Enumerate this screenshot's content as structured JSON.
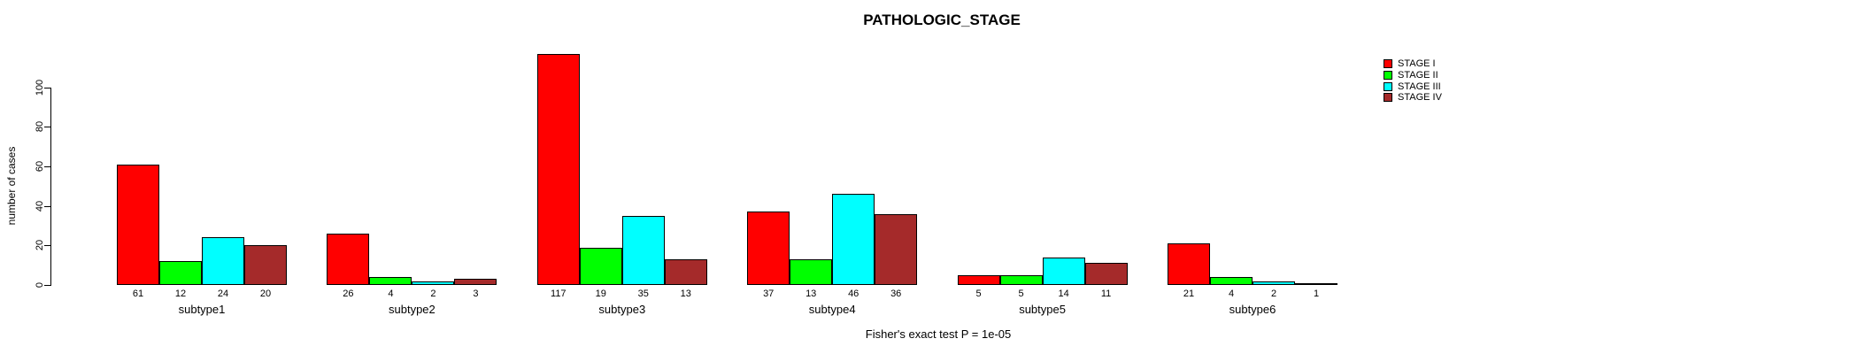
{
  "chart": {
    "title": "PATHOLOGIC_STAGE",
    "ylabel": "number of cases",
    "caption": "Fisher's exact test P = 1e-05",
    "background": "#FFFFFF"
  },
  "chart_data": {
    "type": "bar",
    "title": "PATHOLOGIC_STAGE",
    "xlabel": "",
    "ylabel": "number of cases",
    "categories": [
      "subtype1",
      "subtype2",
      "subtype3",
      "subtype4",
      "subtype5",
      "subtype6"
    ],
    "series": [
      {
        "name": "STAGE I",
        "color": "#FF0000",
        "values": [
          61,
          26,
          117,
          37,
          5,
          21
        ]
      },
      {
        "name": "STAGE II",
        "color": "#00FF00",
        "values": [
          12,
          4,
          19,
          13,
          5,
          4
        ]
      },
      {
        "name": "STAGE III",
        "color": "#00FFFF",
        "values": [
          24,
          2,
          35,
          46,
          14,
          2
        ]
      },
      {
        "name": "STAGE IV",
        "color": "#A52A2A",
        "values": [
          20,
          3,
          13,
          36,
          11,
          1
        ]
      }
    ],
    "yticks": [
      0,
      20,
      40,
      60,
      80,
      100
    ],
    "ylim": [
      0,
      117
    ],
    "grid": false,
    "bar_value_labels": true,
    "legend_position": "right",
    "annotation": "Fisher's exact test P = 1e-05"
  }
}
